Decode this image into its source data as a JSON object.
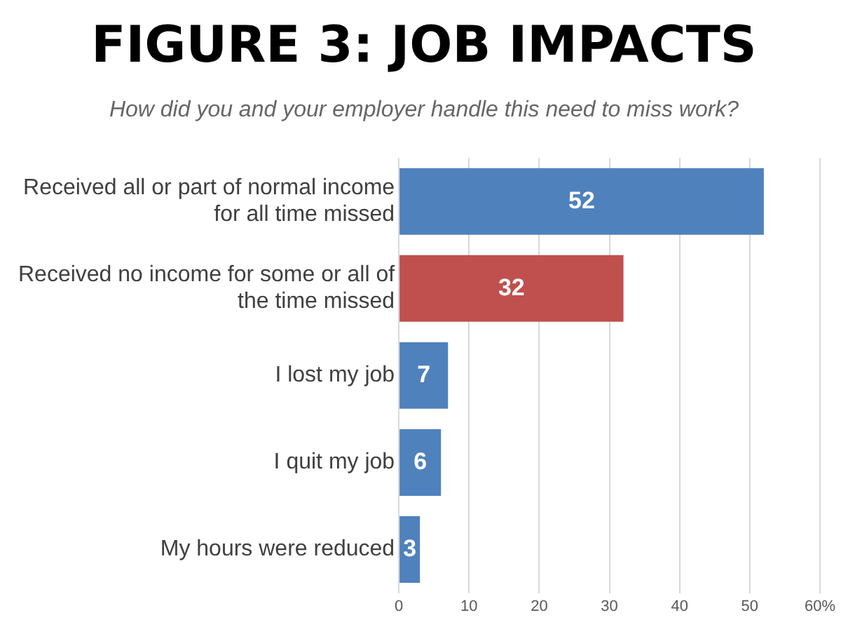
{
  "chart_data": {
    "type": "bar",
    "orientation": "horizontal",
    "title": "FIGURE 3: JOB IMPACTS",
    "subtitle": "How did you and your employer handle this need to miss work?",
    "categories": [
      "Received all or part of normal income for all time missed",
      "Received no income for some or all of the time missed",
      "I lost my job",
      "I quit my job",
      "My hours were reduced"
    ],
    "values": [
      52,
      32,
      7,
      6,
      3
    ],
    "colors": [
      "#4f81bd",
      "#c0504d",
      "#4f81bd",
      "#4f81bd",
      "#4f81bd"
    ],
    "xlim": [
      0,
      60
    ],
    "xticks": [
      0,
      10,
      20,
      30,
      40,
      50,
      {
        "value": 60,
        "label": "60%"
      }
    ],
    "grid": "x",
    "legend": false,
    "data_labels": true
  }
}
